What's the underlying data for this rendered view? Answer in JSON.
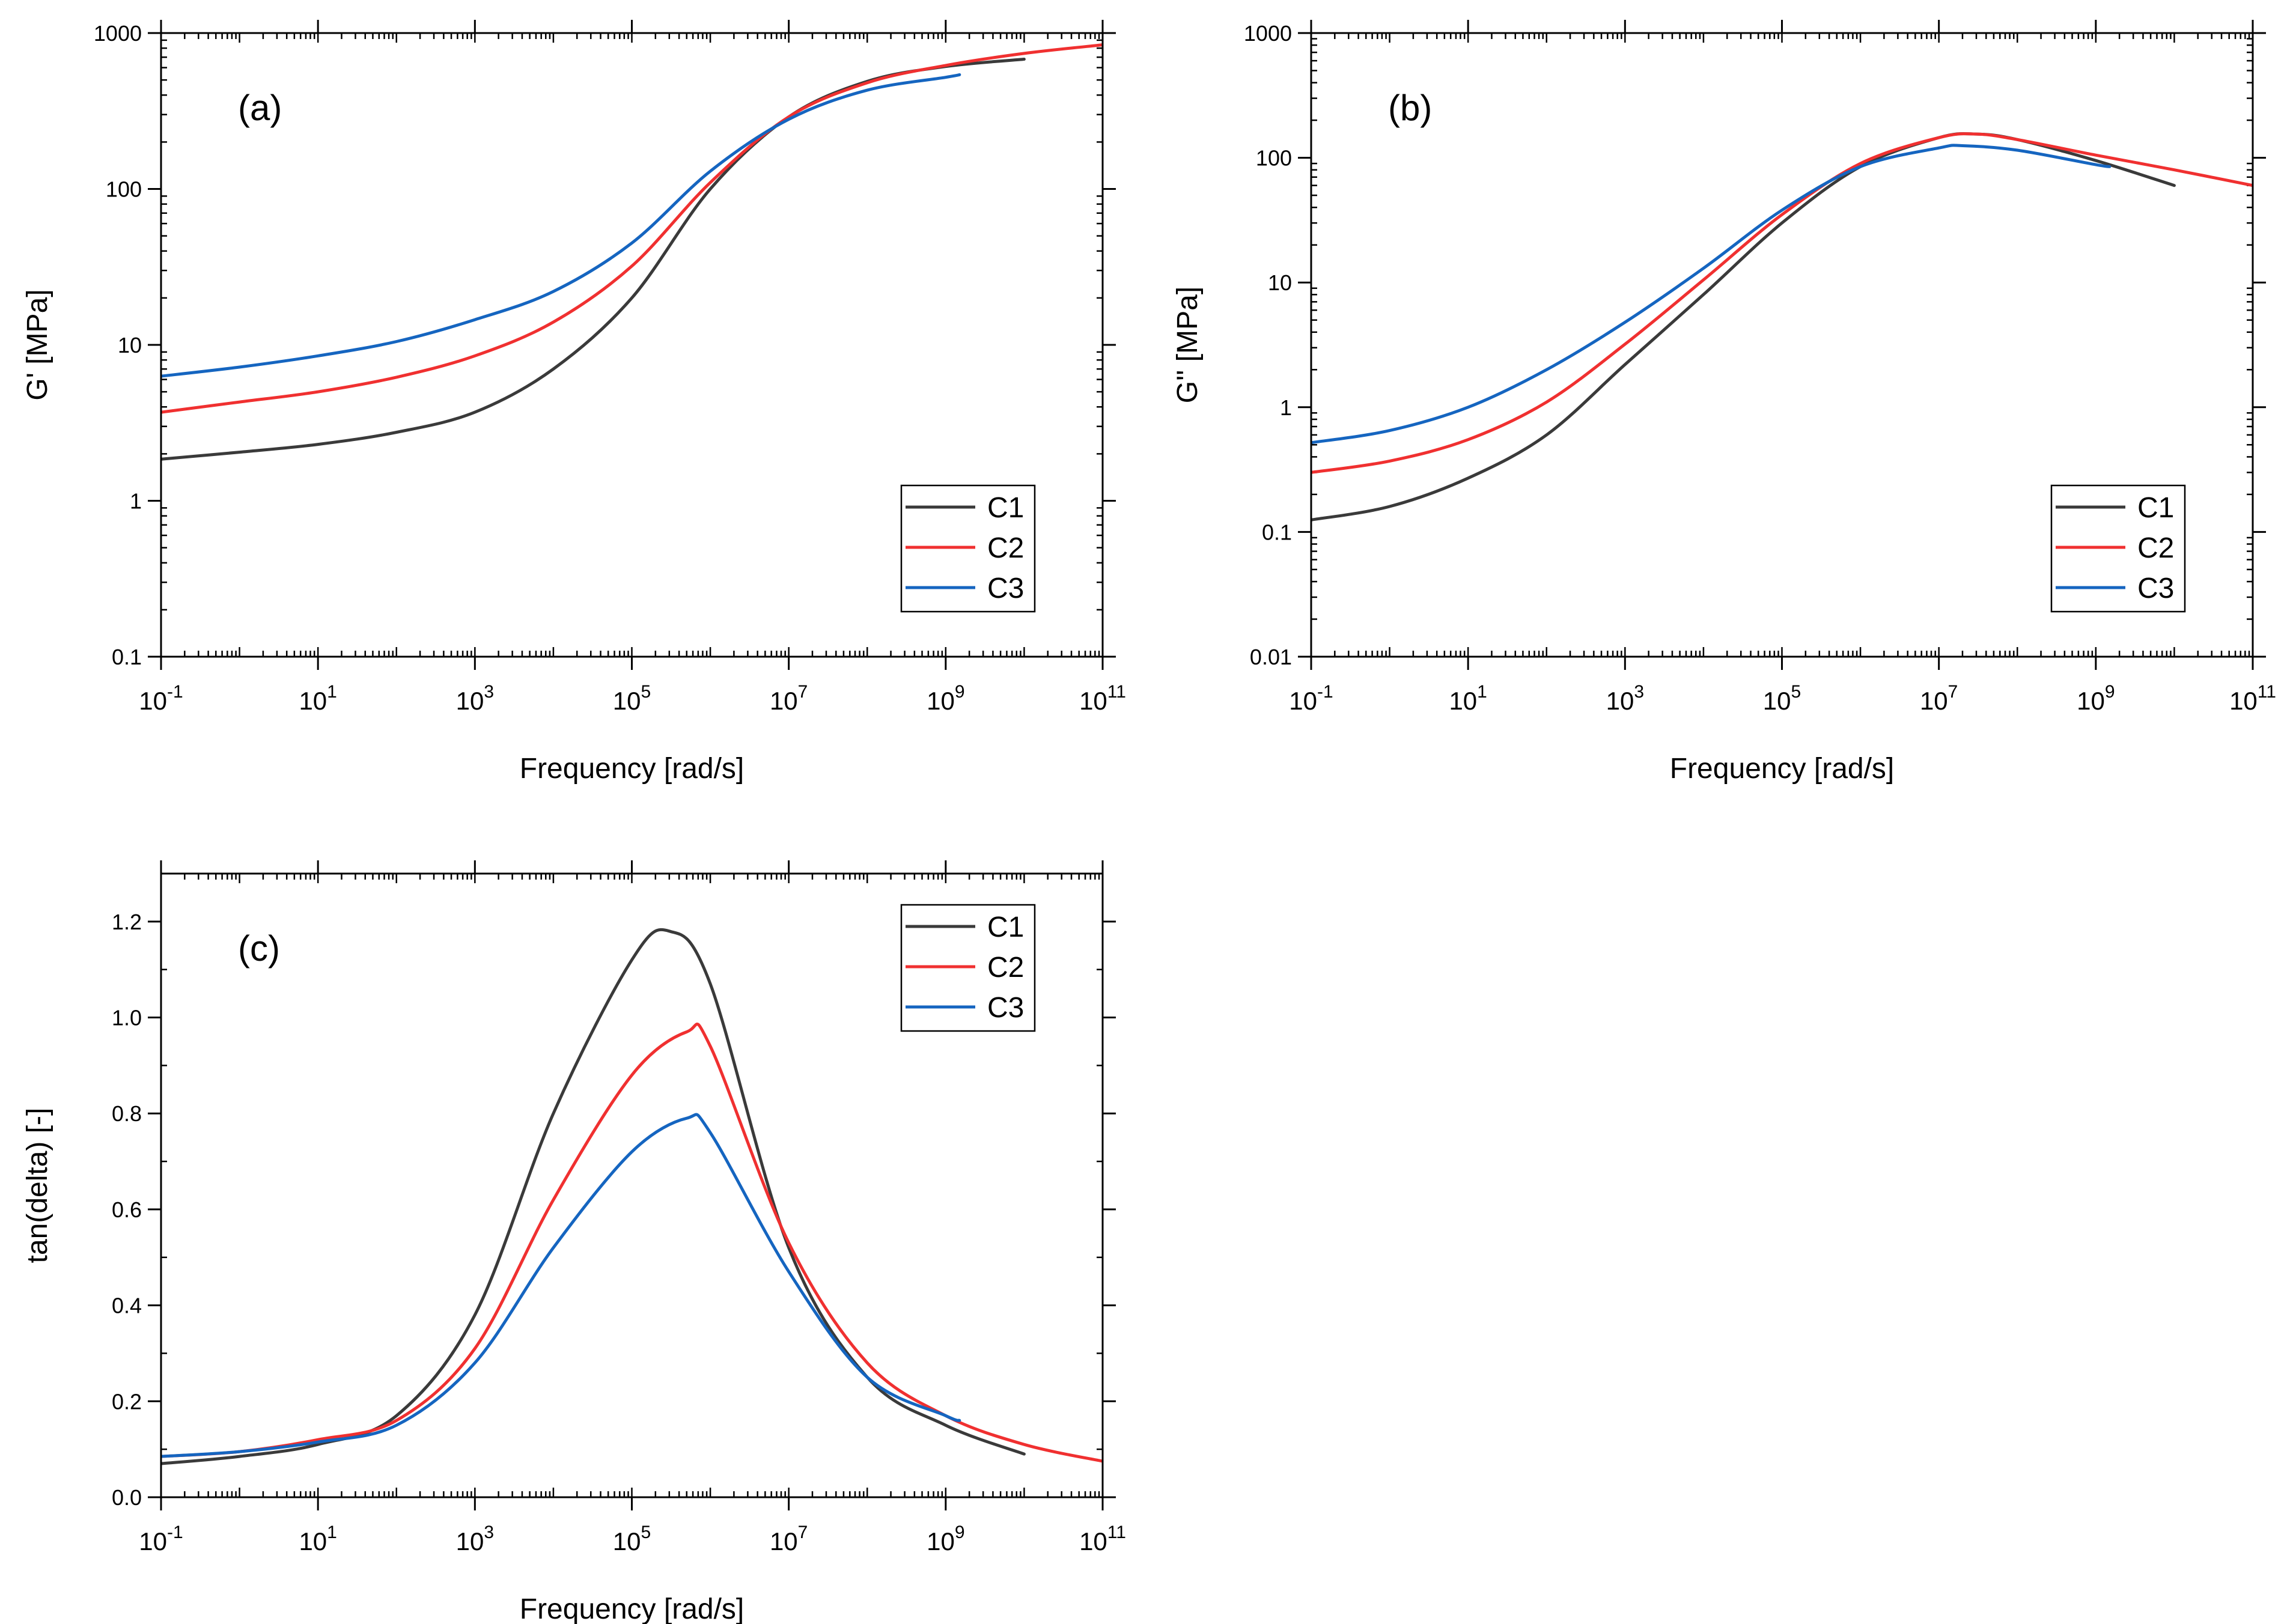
{
  "chart_data": [
    {
      "type": "line",
      "panel_label": "(a)",
      "xlabel": "Frequency [rad/s]",
      "ylabel": "G' [MPa]",
      "xscale": "log",
      "yscale": "log",
      "xlim": [
        0.1,
        100000000000
      ],
      "ylim": [
        0.1,
        1000
      ],
      "x_ticks": [
        {
          "v": 0.1,
          "base": "10",
          "exp": "-1"
        },
        {
          "v": 10,
          "base": "10",
          "exp": "1"
        },
        {
          "v": 1000,
          "base": "10",
          "exp": "3"
        },
        {
          "v": 100000,
          "base": "10",
          "exp": "5"
        },
        {
          "v": 10000000,
          "base": "10",
          "exp": "7"
        },
        {
          "v": 1000000000,
          "base": "10",
          "exp": "9"
        },
        {
          "v": 100000000000,
          "base": "10",
          "exp": "11"
        }
      ],
      "y_ticks": [
        {
          "v": 0.1,
          "label": "0.1"
        },
        {
          "v": 1,
          "label": "1"
        },
        {
          "v": 10,
          "label": "10"
        },
        {
          "v": 100,
          "label": "100"
        },
        {
          "v": 1000,
          "label": "1000"
        }
      ],
      "legend_position": "lower-right",
      "series": [
        {
          "name": "C1",
          "color": "#3a3a3a",
          "x": [
            0.1,
            1,
            10,
            100,
            1000,
            10000,
            100000,
            1000000,
            10000000,
            100000000,
            1000000000,
            10000000000
          ],
          "y": [
            1.85,
            2.05,
            2.3,
            2.75,
            3.7,
            7,
            20,
            100,
            290,
            490,
            610,
            680
          ]
        },
        {
          "name": "C2",
          "color": "#f03030",
          "x": [
            0.1,
            1,
            10,
            100,
            1000,
            10000,
            100000,
            1000000,
            10000000,
            100000000,
            1000000000,
            10000000000,
            100000000000
          ],
          "y": [
            3.7,
            4.3,
            5,
            6.2,
            8.5,
            14,
            32,
            110,
            290,
            480,
            620,
            740,
            840
          ]
        },
        {
          "name": "C3",
          "color": "#1565c0",
          "x": [
            0.1,
            1,
            10,
            100,
            1000,
            10000,
            100000,
            1000000,
            10000000,
            100000000,
            1000000000,
            1500000000
          ],
          "y": [
            6.3,
            7.2,
            8.5,
            10.5,
            14.5,
            22,
            45,
            130,
            280,
            430,
            520,
            540
          ]
        }
      ]
    },
    {
      "type": "line",
      "panel_label": "(b)",
      "xlabel": "Frequency [rad/s]",
      "ylabel": "G'' [MPa]",
      "xscale": "log",
      "yscale": "log",
      "xlim": [
        0.1,
        100000000000
      ],
      "ylim": [
        0.01,
        1000
      ],
      "x_ticks": [
        {
          "v": 0.1,
          "base": "10",
          "exp": "-1"
        },
        {
          "v": 10,
          "base": "10",
          "exp": "1"
        },
        {
          "v": 1000,
          "base": "10",
          "exp": "3"
        },
        {
          "v": 100000,
          "base": "10",
          "exp": "5"
        },
        {
          "v": 10000000,
          "base": "10",
          "exp": "7"
        },
        {
          "v": 1000000000,
          "base": "10",
          "exp": "9"
        },
        {
          "v": 100000000000,
          "base": "10",
          "exp": "11"
        }
      ],
      "y_ticks": [
        {
          "v": 0.01,
          "label": "0.01"
        },
        {
          "v": 0.1,
          "label": "0.1"
        },
        {
          "v": 1,
          "label": "1"
        },
        {
          "v": 10,
          "label": "10"
        },
        {
          "v": 100,
          "label": "100"
        },
        {
          "v": 1000,
          "label": "1000"
        }
      ],
      "legend_position": "lower-right",
      "series": [
        {
          "name": "C1",
          "color": "#3a3a3a",
          "x": [
            0.1,
            1,
            10,
            100,
            1000,
            10000,
            100000,
            1000000,
            10000000,
            30000000,
            100000000,
            1000000000,
            10000000000
          ],
          "y": [
            0.125,
            0.16,
            0.27,
            0.6,
            2.2,
            8,
            30,
            85,
            145,
            155,
            140,
            95,
            60
          ]
        },
        {
          "name": "C2",
          "color": "#f03030",
          "x": [
            0.1,
            1,
            10,
            100,
            1000,
            10000,
            100000,
            1000000,
            10000000,
            30000000,
            100000000,
            1000000000,
            10000000000,
            100000000000
          ],
          "y": [
            0.3,
            0.37,
            0.55,
            1.1,
            3.2,
            10.5,
            35,
            90,
            145,
            155,
            140,
            105,
            80,
            60
          ]
        },
        {
          "name": "C3",
          "color": "#1565c0",
          "x": [
            0.1,
            1,
            10,
            100,
            1000,
            10000,
            100000,
            1000000,
            10000000,
            20000000,
            100000000,
            1000000000,
            1500000000
          ],
          "y": [
            0.52,
            0.65,
            1,
            2,
            4.8,
            13,
            38,
            85,
            120,
            125,
            115,
            88,
            85
          ]
        }
      ]
    },
    {
      "type": "line",
      "panel_label": "(c)",
      "xlabel": "Frequency [rad/s]",
      "ylabel": "tan(delta) [-]",
      "xscale": "log",
      "yscale": "linear",
      "xlim": [
        0.1,
        100000000000
      ],
      "ylim": [
        0,
        1.3
      ],
      "x_ticks": [
        {
          "v": 0.1,
          "base": "10",
          "exp": "-1"
        },
        {
          "v": 10,
          "base": "10",
          "exp": "1"
        },
        {
          "v": 1000,
          "base": "10",
          "exp": "3"
        },
        {
          "v": 100000,
          "base": "10",
          "exp": "5"
        },
        {
          "v": 10000000,
          "base": "10",
          "exp": "7"
        },
        {
          "v": 1000000000,
          "base": "10",
          "exp": "9"
        },
        {
          "v": 100000000000,
          "base": "10",
          "exp": "11"
        }
      ],
      "y_ticks": [
        {
          "v": 0,
          "label": "0.0"
        },
        {
          "v": 0.2,
          "label": "0.2"
        },
        {
          "v": 0.4,
          "label": "0.4"
        },
        {
          "v": 0.6,
          "label": "0.6"
        },
        {
          "v": 0.8,
          "label": "0.8"
        },
        {
          "v": 1.0,
          "label": "1.0"
        },
        {
          "v": 1.2,
          "label": "1.2"
        }
      ],
      "legend_position": "top-right",
      "series": [
        {
          "name": "C1",
          "color": "#3a3a3a",
          "x": [
            0.1,
            1,
            10,
            100,
            1000,
            10000,
            100000,
            300000,
            1000000,
            10000000,
            100000000,
            1000000000,
            10000000000
          ],
          "y": [
            0.07,
            0.085,
            0.11,
            0.17,
            0.38,
            0.8,
            1.12,
            1.18,
            1.07,
            0.52,
            0.25,
            0.15,
            0.09
          ]
        },
        {
          "name": "C2",
          "color": "#f03030",
          "x": [
            0.1,
            1,
            10,
            100,
            1000,
            10000,
            100000,
            500000,
            1000000,
            10000000,
            100000000,
            1000000000,
            10000000000,
            100000000000
          ],
          "y": [
            0.085,
            0.095,
            0.12,
            0.16,
            0.31,
            0.62,
            0.88,
            0.97,
            0.94,
            0.53,
            0.28,
            0.17,
            0.11,
            0.075
          ]
        },
        {
          "name": "C3",
          "color": "#1565c0",
          "x": [
            0.1,
            1,
            10,
            100,
            1000,
            10000,
            100000,
            500000,
            1000000,
            10000000,
            100000000,
            1000000000,
            1500000000
          ],
          "y": [
            0.085,
            0.095,
            0.115,
            0.15,
            0.28,
            0.52,
            0.72,
            0.79,
            0.76,
            0.47,
            0.25,
            0.17,
            0.16
          ]
        }
      ]
    }
  ]
}
